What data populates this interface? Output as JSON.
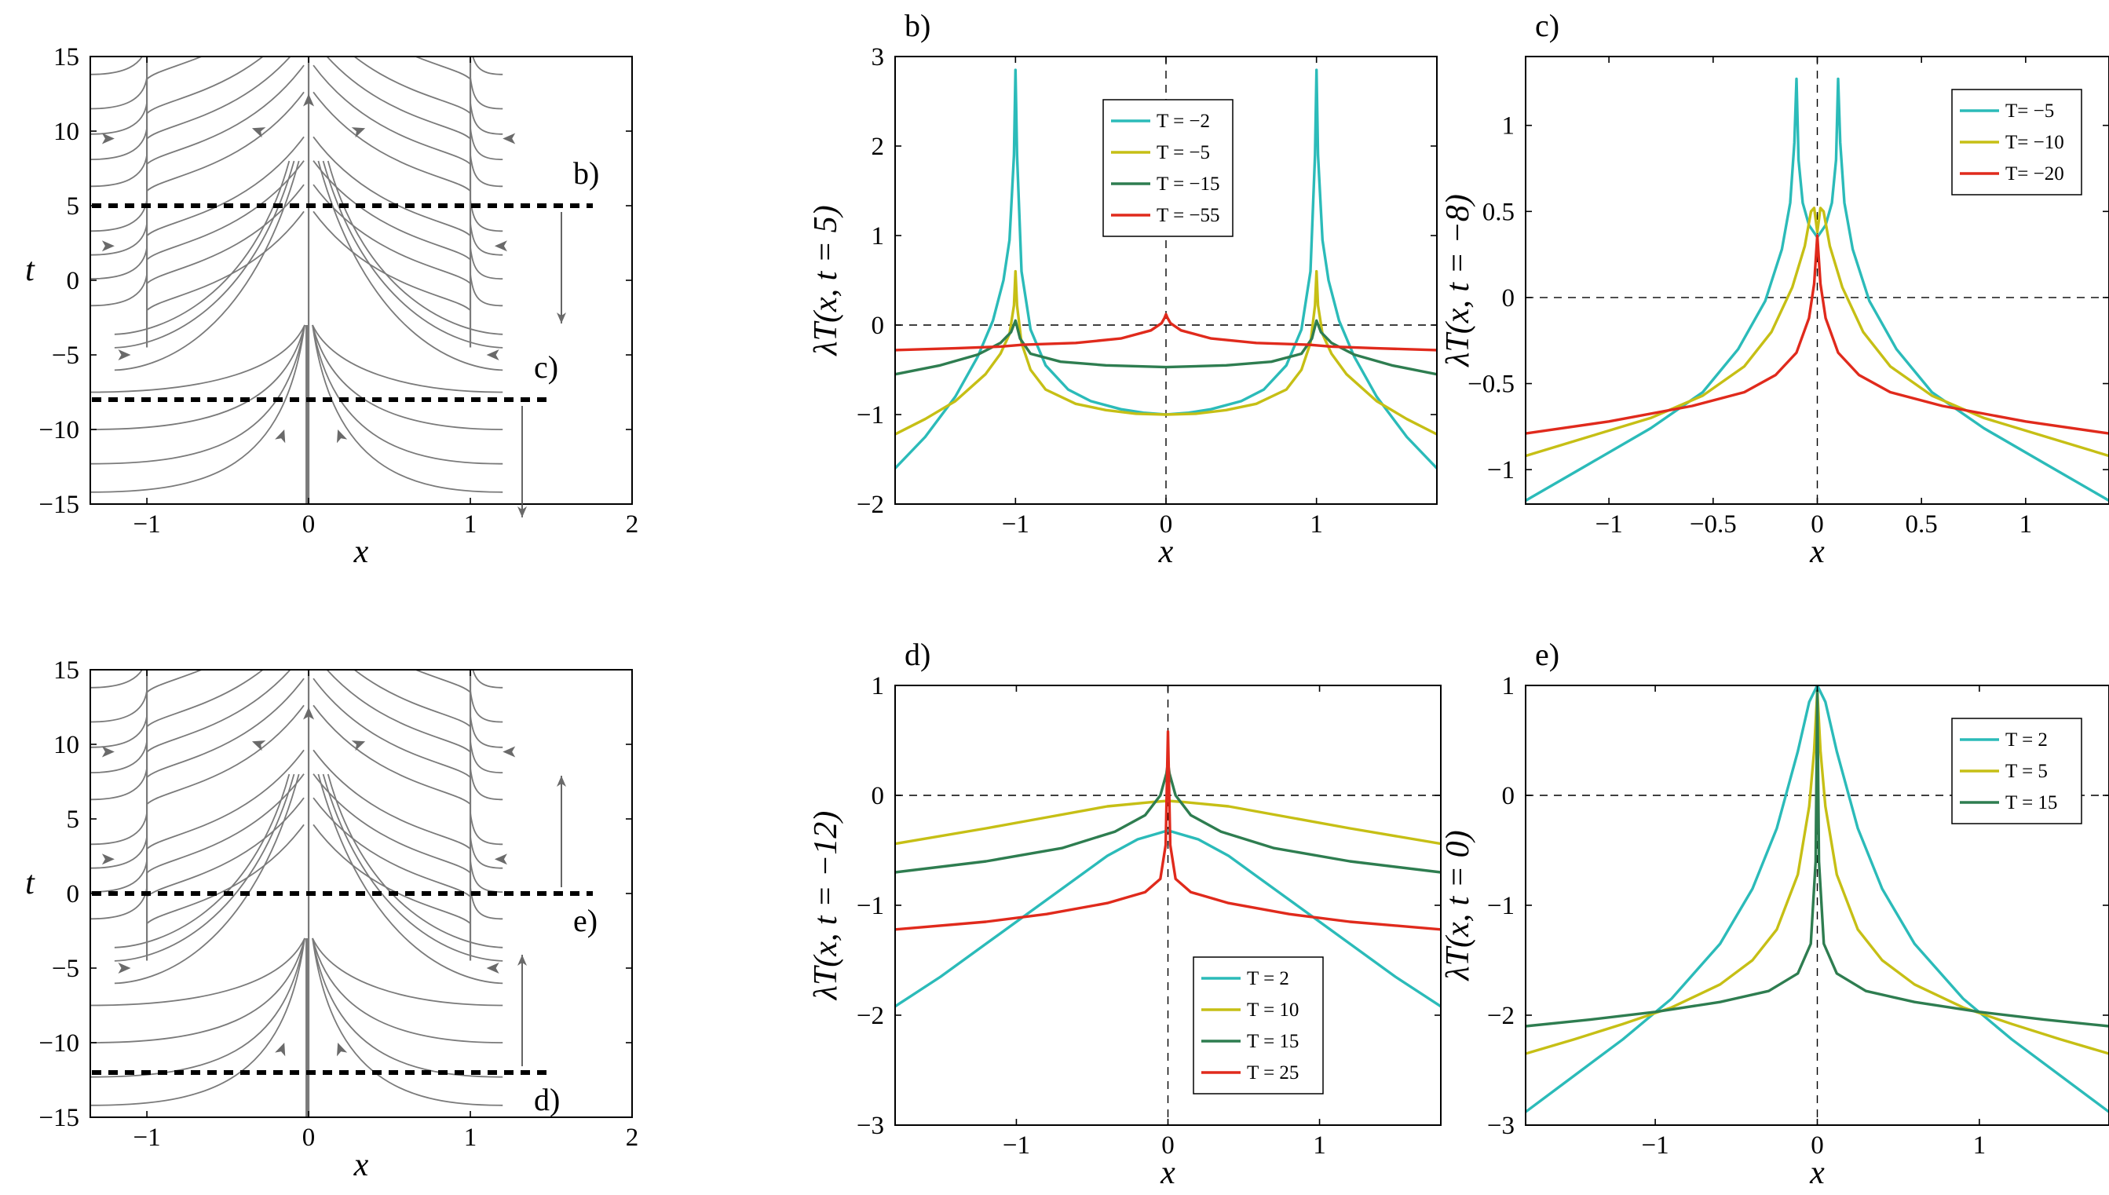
{
  "chart_data": [
    {
      "id": "flow-top",
      "type": "streamlines",
      "xlim": [
        -1.35,
        2
      ],
      "ylim": [
        -15,
        15
      ],
      "xticks": [
        -1,
        0,
        1,
        2
      ],
      "yticks": [
        -15,
        -10,
        -5,
        0,
        5,
        10,
        15
      ],
      "xlabel": "x",
      "ylabel": "t",
      "singular_lines_x": [
        -1,
        0,
        1
      ],
      "slices": [
        {
          "t": 5,
          "label": "b)"
        },
        {
          "t": -8,
          "label": "c)"
        }
      ],
      "arrow_direction": "down"
    },
    {
      "id": "flow-bottom",
      "type": "streamlines",
      "xlim": [
        -1.35,
        2
      ],
      "ylim": [
        -15,
        15
      ],
      "xticks": [
        -1,
        0,
        1,
        2
      ],
      "yticks": [
        -15,
        -10,
        -5,
        0,
        5,
        10,
        15
      ],
      "xlabel": "x",
      "ylabel": "t",
      "singular_lines_x": [
        -1,
        0,
        1
      ],
      "slices": [
        {
          "t": 0,
          "label": "e)"
        },
        {
          "t": -12,
          "label": "d)"
        }
      ],
      "arrow_direction": "up"
    },
    {
      "id": "panel-b",
      "type": "line",
      "panel_label": "b)",
      "xlabel": "x",
      "ylabel": "λT(x, t = 5)",
      "xlim": [
        -1.8,
        1.8
      ],
      "ylim": [
        -2,
        3
      ],
      "xticks": [
        -1,
        0,
        1
      ],
      "yticks": [
        -2,
        -1,
        0,
        1,
        2,
        3
      ],
      "legend_position": "top-center",
      "series": [
        {
          "name": "T = −2",
          "color": "#2bbbb9",
          "x": [
            -1.8,
            -1.6,
            -1.4,
            -1.25,
            -1.15,
            -1.08,
            -1.04,
            -1.01,
            -1.0,
            -0.99,
            -0.96,
            -0.9,
            -0.8,
            -0.65,
            -0.5,
            -0.3,
            -0.15,
            0,
            0.15,
            0.3,
            0.5,
            0.65,
            0.8,
            0.9,
            0.96,
            0.99,
            1.0,
            1.01,
            1.04,
            1.08,
            1.15,
            1.25,
            1.4,
            1.6,
            1.8
          ],
          "y": [
            -1.6,
            -1.25,
            -0.8,
            -0.35,
            0.05,
            0.5,
            0.95,
            1.9,
            2.85,
            1.9,
            0.6,
            -0.05,
            -0.45,
            -0.72,
            -0.85,
            -0.94,
            -0.98,
            -1.0,
            -0.98,
            -0.94,
            -0.85,
            -0.72,
            -0.45,
            -0.05,
            0.6,
            1.9,
            2.85,
            1.9,
            0.95,
            0.5,
            0.05,
            -0.35,
            -0.8,
            -1.25,
            -1.6
          ]
        },
        {
          "name": "T = −5",
          "color": "#c6bf15",
          "x": [
            -1.8,
            -1.6,
            -1.4,
            -1.2,
            -1.1,
            -1.04,
            -1.01,
            -1.0,
            -0.99,
            -0.96,
            -0.9,
            -0.8,
            -0.6,
            -0.4,
            -0.2,
            0,
            0.2,
            0.4,
            0.6,
            0.8,
            0.9,
            0.96,
            0.99,
            1.0,
            1.01,
            1.04,
            1.1,
            1.2,
            1.4,
            1.6,
            1.8
          ],
          "y": [
            -1.22,
            -1.05,
            -0.85,
            -0.55,
            -0.32,
            -0.1,
            0.22,
            0.6,
            0.22,
            -0.2,
            -0.5,
            -0.72,
            -0.88,
            -0.95,
            -0.99,
            -1.0,
            -0.99,
            -0.95,
            -0.88,
            -0.72,
            -0.5,
            -0.2,
            0.22,
            0.6,
            0.22,
            -0.1,
            -0.32,
            -0.55,
            -0.85,
            -1.05,
            -1.22
          ]
        },
        {
          "name": "T = −15",
          "color": "#2e7d50",
          "x": [
            -1.8,
            -1.5,
            -1.25,
            -1.1,
            -1.03,
            -1.0,
            -0.97,
            -0.9,
            -0.7,
            -0.4,
            0,
            0.4,
            0.7,
            0.9,
            0.97,
            1.0,
            1.03,
            1.1,
            1.25,
            1.5,
            1.8
          ],
          "y": [
            -0.55,
            -0.45,
            -0.33,
            -0.2,
            -0.08,
            0.05,
            -0.15,
            -0.32,
            -0.41,
            -0.45,
            -0.47,
            -0.45,
            -0.41,
            -0.32,
            -0.15,
            0.05,
            -0.08,
            -0.2,
            -0.33,
            -0.45,
            -0.55
          ]
        },
        {
          "name": "T = −55",
          "color": "#e02a1c",
          "x": [
            -1.8,
            -1.4,
            -1.1,
            -0.95,
            -0.6,
            -0.3,
            -0.1,
            -0.03,
            -0.01,
            0,
            0.01,
            0.03,
            0.1,
            0.3,
            0.6,
            0.95,
            1.1,
            1.4,
            1.8
          ],
          "y": [
            -0.28,
            -0.26,
            -0.24,
            -0.22,
            -0.2,
            -0.15,
            -0.06,
            0.02,
            0.08,
            0.12,
            0.08,
            0.02,
            -0.06,
            -0.15,
            -0.2,
            -0.22,
            -0.24,
            -0.26,
            -0.28
          ]
        }
      ]
    },
    {
      "id": "panel-c",
      "type": "line",
      "panel_label": "c)",
      "xlabel": "x",
      "ylabel": "λT(x, t = −8)",
      "xlim": [
        -1.4,
        1.4
      ],
      "ylim": [
        -1.2,
        1.4
      ],
      "xticks": [
        -1,
        -0.5,
        0,
        0.5,
        1
      ],
      "xtick_labels": [
        "−1",
        "−0.5",
        "0",
        "0.5",
        "1"
      ],
      "yticks": [
        -1,
        -0.5,
        0,
        0.5,
        1
      ],
      "legend_position": "top-right",
      "series": [
        {
          "name": "T= −5",
          "color": "#2bbbb9",
          "x": [
            -1.4,
            -1.1,
            -0.8,
            -0.55,
            -0.38,
            -0.25,
            -0.17,
            -0.13,
            -0.11,
            -0.1,
            -0.09,
            -0.07,
            -0.04,
            0,
            0.04,
            0.07,
            0.09,
            0.1,
            0.11,
            0.13,
            0.17,
            0.25,
            0.38,
            0.55,
            0.8,
            1.1,
            1.4
          ],
          "y": [
            -1.18,
            -0.97,
            -0.76,
            -0.55,
            -0.3,
            -0.02,
            0.28,
            0.55,
            0.9,
            1.27,
            0.8,
            0.55,
            0.42,
            0.35,
            0.42,
            0.55,
            0.8,
            1.27,
            0.9,
            0.55,
            0.28,
            -0.02,
            -0.3,
            -0.55,
            -0.76,
            -0.97,
            -1.18
          ]
        },
        {
          "name": "T= −10",
          "color": "#c6bf15",
          "x": [
            -1.4,
            -1.1,
            -0.8,
            -0.55,
            -0.35,
            -0.22,
            -0.12,
            -0.06,
            -0.03,
            -0.015,
            0,
            0.015,
            0.03,
            0.06,
            0.12,
            0.22,
            0.35,
            0.55,
            0.8,
            1.1,
            1.4
          ],
          "y": [
            -0.92,
            -0.81,
            -0.7,
            -0.57,
            -0.4,
            -0.2,
            0.06,
            0.3,
            0.5,
            0.52,
            0.38,
            0.52,
            0.5,
            0.3,
            0.06,
            -0.2,
            -0.4,
            -0.57,
            -0.7,
            -0.81,
            -0.92
          ]
        },
        {
          "name": "T= −20",
          "color": "#e02a1c",
          "x": [
            -1.4,
            -1.0,
            -0.6,
            -0.35,
            -0.2,
            -0.1,
            -0.04,
            -0.015,
            0,
            0.015,
            0.04,
            0.1,
            0.2,
            0.35,
            0.6,
            1.0,
            1.4
          ],
          "y": [
            -0.79,
            -0.72,
            -0.63,
            -0.55,
            -0.45,
            -0.32,
            -0.12,
            0.08,
            0.36,
            0.08,
            -0.12,
            -0.32,
            -0.45,
            -0.55,
            -0.63,
            -0.72,
            -0.79
          ]
        }
      ]
    },
    {
      "id": "panel-d",
      "type": "line",
      "panel_label": "d)",
      "xlabel": "x",
      "ylabel": "λT(x, t = −12)",
      "xlim": [
        -1.8,
        1.8
      ],
      "ylim": [
        -3,
        1
      ],
      "xticks": [
        -1,
        0,
        1
      ],
      "yticks": [
        -3,
        -2,
        -1,
        0,
        1
      ],
      "legend_position": "bottom-center",
      "series": [
        {
          "name": "T = 2",
          "color": "#2bbbb9",
          "x": [
            -1.8,
            -1.5,
            -1.2,
            -0.9,
            -0.6,
            -0.4,
            -0.2,
            0,
            0.2,
            0.4,
            0.6,
            0.9,
            1.2,
            1.5,
            1.8
          ],
          "y": [
            -1.92,
            -1.65,
            -1.35,
            -1.05,
            -0.75,
            -0.55,
            -0.4,
            -0.32,
            -0.4,
            -0.55,
            -0.75,
            -1.05,
            -1.35,
            -1.65,
            -1.92
          ]
        },
        {
          "name": "T = 10",
          "color": "#c6bf15",
          "x": [
            -1.8,
            -1.2,
            -0.8,
            -0.4,
            -0.1,
            0,
            0.1,
            0.4,
            0.8,
            1.2,
            1.8
          ],
          "y": [
            -0.44,
            -0.3,
            -0.2,
            -0.1,
            -0.06,
            -0.05,
            -0.06,
            -0.1,
            -0.2,
            -0.3,
            -0.44
          ]
        },
        {
          "name": "T = 15",
          "color": "#2e7d50",
          "x": [
            -1.8,
            -1.2,
            -0.7,
            -0.35,
            -0.15,
            -0.05,
            -0.01,
            0,
            0.01,
            0.05,
            0.15,
            0.35,
            0.7,
            1.2,
            1.8
          ],
          "y": [
            -0.7,
            -0.6,
            -0.48,
            -0.33,
            -0.18,
            0.0,
            0.2,
            0.3,
            0.2,
            0.0,
            -0.18,
            -0.33,
            -0.48,
            -0.6,
            -0.7
          ]
        },
        {
          "name": "T = 25",
          "color": "#e02a1c",
          "x": [
            -1.8,
            -1.2,
            -0.8,
            -0.4,
            -0.15,
            -0.05,
            -0.015,
            0,
            0.015,
            0.05,
            0.15,
            0.4,
            0.8,
            1.2,
            1.8
          ],
          "y": [
            -1.22,
            -1.15,
            -1.08,
            -0.98,
            -0.88,
            -0.76,
            -0.45,
            0.58,
            -0.45,
            -0.76,
            -0.88,
            -0.98,
            -1.08,
            -1.15,
            -1.22
          ]
        }
      ]
    },
    {
      "id": "panel-e",
      "type": "line",
      "panel_label": "e)",
      "xlabel": "x",
      "ylabel": "λT(x, t = 0)",
      "xlim": [
        -1.8,
        1.8
      ],
      "ylim": [
        -3,
        1
      ],
      "xticks": [
        -1,
        0,
        1
      ],
      "yticks": [
        -3,
        -2,
        -1,
        0,
        1
      ],
      "legend_position": "top-right",
      "series": [
        {
          "name": "T = 2",
          "color": "#2bbbb9",
          "x": [
            -1.8,
            -1.5,
            -1.2,
            -0.9,
            -0.6,
            -0.4,
            -0.25,
            -0.12,
            -0.05,
            0,
            0.05,
            0.12,
            0.25,
            0.4,
            0.6,
            0.9,
            1.2,
            1.5,
            1.8
          ],
          "y": [
            -2.88,
            -2.55,
            -2.22,
            -1.85,
            -1.35,
            -0.85,
            -0.3,
            0.4,
            0.85,
            1.0,
            0.85,
            0.4,
            -0.3,
            -0.85,
            -1.35,
            -1.85,
            -2.22,
            -2.55,
            -2.88
          ]
        },
        {
          "name": "T = 5",
          "color": "#c6bf15",
          "x": [
            -1.8,
            -1.5,
            -1.2,
            -0.9,
            -0.6,
            -0.4,
            -0.25,
            -0.12,
            -0.05,
            -0.02,
            0,
            0.02,
            0.05,
            0.12,
            0.25,
            0.4,
            0.6,
            0.9,
            1.2,
            1.5,
            1.8
          ],
          "y": [
            -2.35,
            -2.22,
            -2.08,
            -1.93,
            -1.72,
            -1.5,
            -1.22,
            -0.72,
            -0.1,
            0.4,
            0.95,
            0.4,
            -0.1,
            -0.72,
            -1.22,
            -1.5,
            -1.72,
            -1.93,
            -2.08,
            -2.22,
            -2.35
          ]
        },
        {
          "name": "T = 15",
          "color": "#2e7d50",
          "x": [
            -1.8,
            -1.4,
            -1.0,
            -0.6,
            -0.3,
            -0.12,
            -0.04,
            -0.01,
            0,
            0.01,
            0.04,
            0.12,
            0.3,
            0.6,
            1.0,
            1.4,
            1.8
          ],
          "y": [
            -2.1,
            -2.04,
            -1.97,
            -1.88,
            -1.78,
            -1.62,
            -1.35,
            -0.6,
            0.95,
            -0.6,
            -1.35,
            -1.62,
            -1.78,
            -1.88,
            -1.97,
            -2.04,
            -2.1
          ]
        }
      ]
    }
  ]
}
